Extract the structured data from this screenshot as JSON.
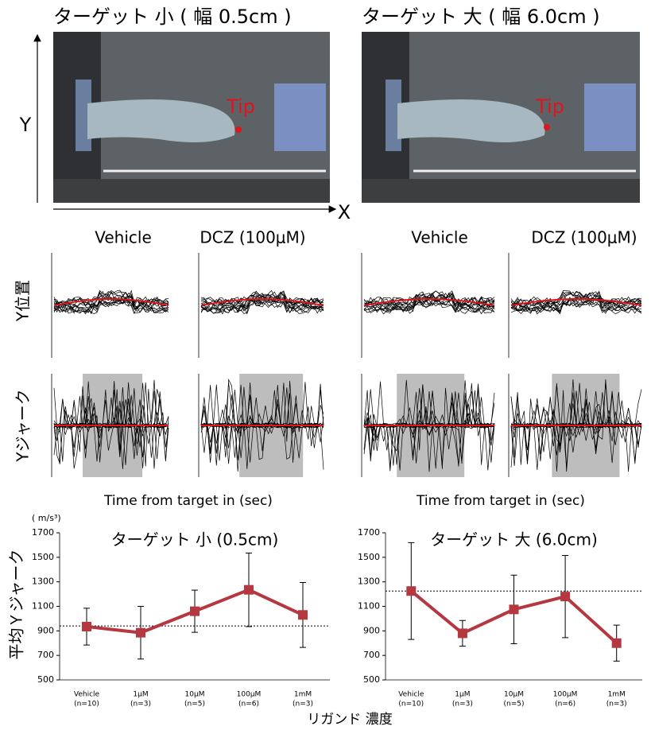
{
  "figure": {
    "photo_titles": [
      "ターゲット 小 ( 幅 0.5cm )",
      "ターゲット 大 ( 幅 6.0cm )"
    ],
    "tip_label": "Tip",
    "axis_y": "Y",
    "axis_x": "X",
    "condition_labels": [
      "Vehicle",
      "DCZ (100μM)"
    ],
    "row_labels": [
      "Y位置",
      "Yジャーク"
    ],
    "time_label": "Time from target in (sec)",
    "unit_label": "( m/s³)",
    "mean_label": "平均Ｙジャーク",
    "ligand_label": "リガンド 濃度"
  },
  "chart_data": [
    {
      "type": "line",
      "title": "ターゲット 小 (0.5cm)",
      "categories": [
        "Vehicle",
        "1μM",
        "10μM",
        "100μM",
        "1mM"
      ],
      "n_labels": [
        "(n=10)",
        "(n=3)",
        "(n=5)",
        "(n=6)",
        "(n=3)"
      ],
      "values": [
        935,
        885,
        1060,
        1235,
        1030
      ],
      "errors": [
        150,
        215,
        172,
        300,
        265
      ],
      "reference_line": 940,
      "color": "#b5373f",
      "ylim": [
        500,
        1700
      ],
      "yticks": [
        500,
        700,
        900,
        1100,
        1300,
        1500,
        1700
      ]
    },
    {
      "type": "line",
      "title": "ターゲット 大 (6.0cm)",
      "categories": [
        "Vehicle",
        "1μM",
        "10μM",
        "100μM",
        "1mM"
      ],
      "n_labels": [
        "(n=10)",
        "(n=3)",
        "(n=5)",
        "(n=6)",
        "(n=3)"
      ],
      "values": [
        1225,
        880,
        1075,
        1180,
        800
      ],
      "errors": [
        395,
        105,
        280,
        335,
        147
      ],
      "reference_line": 1225,
      "color": "#b5373f",
      "ylim": [
        500,
        1700
      ],
      "yticks": [
        500,
        700,
        900,
        1100,
        1300,
        1500,
        1700
      ]
    }
  ]
}
